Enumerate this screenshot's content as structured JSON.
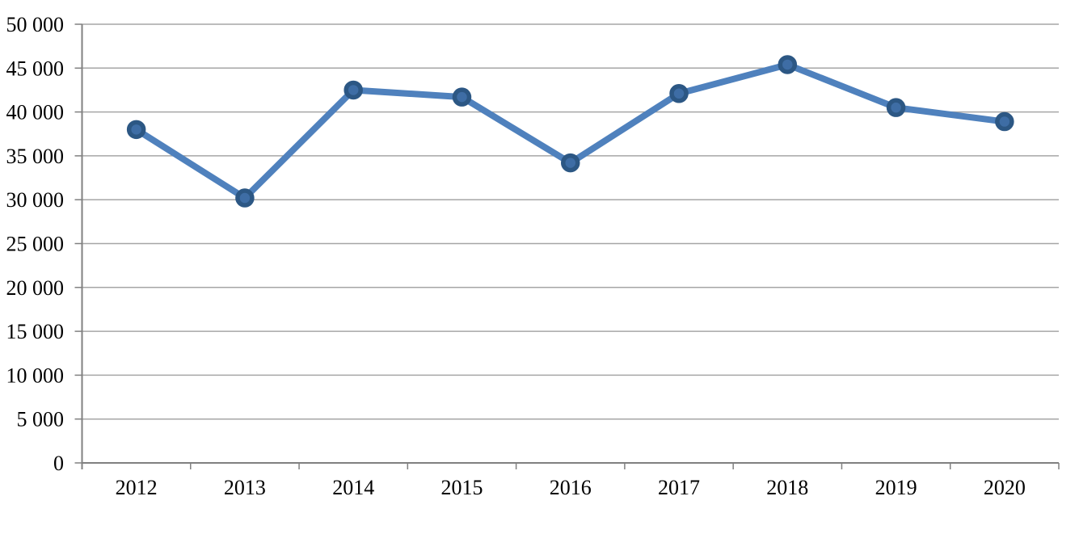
{
  "chart_data": {
    "type": "line",
    "title": "",
    "xlabel": "",
    "ylabel": "",
    "categories": [
      "2012",
      "2013",
      "2014",
      "2015",
      "2016",
      "2017",
      "2018",
      "2019",
      "2020"
    ],
    "series": [
      {
        "values": [
          38000,
          30200,
          42500,
          41700,
          34200,
          42100,
          45400,
          40500,
          38900
        ]
      }
    ],
    "ylim": [
      0,
      50000
    ],
    "ytick_step": 5000,
    "ytick_labels": [
      "0",
      "5 000",
      "10 000",
      "15 000",
      "20 000",
      "25 000",
      "30 000",
      "35 000",
      "40 000",
      "45 000",
      "50 000"
    ],
    "grid": true,
    "legend": false,
    "marker": "circle"
  },
  "colors": {
    "line": "#4f81bd",
    "marker_fill": "#3e6da5",
    "marker_border": "#2c5784",
    "gridline": "#a6a6a6",
    "axis": "#808080",
    "label_text": "#000000",
    "background": "#ffffff"
  }
}
